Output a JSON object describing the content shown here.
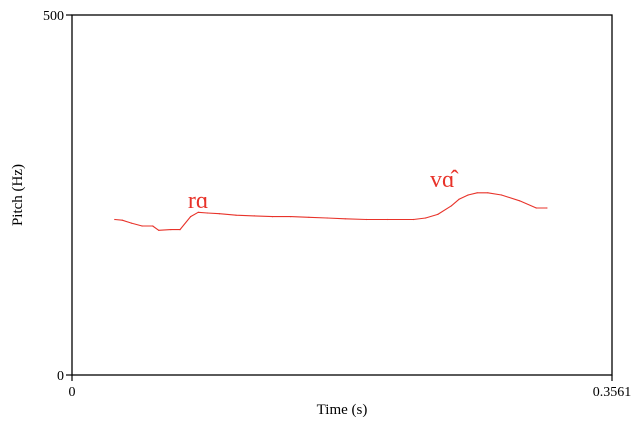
{
  "chart_data": {
    "type": "line",
    "title": "",
    "xlabel": "Time (s)",
    "ylabel": "Pitch (Hz)",
    "xlim": [
      0,
      0.3561
    ],
    "ylim": [
      0,
      500
    ],
    "x_tick_labels": [
      "0",
      "0.3561"
    ],
    "y_tick_labels": [
      "0",
      "500"
    ],
    "grid": false,
    "line_color": "#e8332a",
    "annotation_color": "#e8332a",
    "series": [
      {
        "x": [
          0.0282,
          0.0332,
          0.0392,
          0.0462,
          0.0532,
          0.0572,
          0.0652,
          0.0712,
          0.0782,
          0.0832,
          0.0892,
          0.0972,
          0.1082,
          0.1202,
          0.1322,
          0.1442,
          0.1562,
          0.1682,
          0.1802,
          0.1942,
          0.2082,
          0.2252,
          0.2332,
          0.2412,
          0.2502,
          0.2552,
          0.2612,
          0.2672,
          0.2742,
          0.2832,
          0.2952,
          0.3062,
          0.3132
        ],
        "y": [
          216,
          215,
          211,
          207,
          207,
          201,
          202,
          202,
          220,
          226,
          225,
          224,
          222,
          221,
          220,
          220,
          219,
          218,
          217,
          216,
          216,
          216,
          218,
          223,
          235,
          244,
          250,
          253,
          253,
          250,
          242,
          232,
          232
        ]
      }
    ],
    "annotations": [
      {
        "text": "rɑ",
        "x": 0.0832,
        "y": 232
      },
      {
        "text": "vɑ̂",
        "x": 0.2442,
        "y": 261
      }
    ]
  }
}
